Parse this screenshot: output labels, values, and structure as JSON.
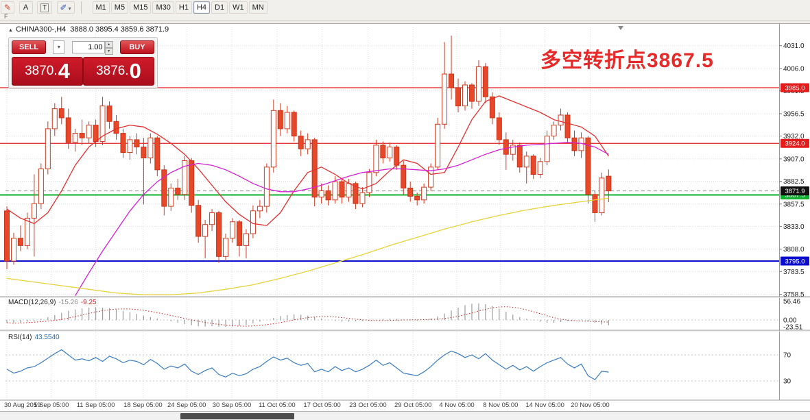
{
  "icons": {
    "collapse": "▲",
    "chevron_down": "▾",
    "chevron_up": "▴",
    "pencil": "✎",
    "brush": "✐"
  },
  "toolbar": {
    "a_label": "A",
    "t_label": "T",
    "dock_letter": "F",
    "timeframes": [
      {
        "label": "M1"
      },
      {
        "label": "M5"
      },
      {
        "label": "M15"
      },
      {
        "label": "M30"
      },
      {
        "label": "H1"
      },
      {
        "label": "H4",
        "active": true
      },
      {
        "label": "D1"
      },
      {
        "label": "W1"
      },
      {
        "label": "MN"
      }
    ]
  },
  "chart": {
    "symbol_line": "CHINA300-,H4  3888.0 3895.4 3859.6 3871.9",
    "annotation": "多空转折点3867.5"
  },
  "trade": {
    "sell_label": "SELL",
    "buy_label": "BUY",
    "volume": "1.00",
    "bid_main": "3870.",
    "bid_pip": "4",
    "ask_main": "3876.",
    "ask_pip": "0"
  },
  "chart_data": {
    "type": "candlestick",
    "symbol": "CHINA300-",
    "period": "H4",
    "ohlc_current": {
      "open": 3888.0,
      "high": 3895.4,
      "low": 3859.6,
      "close": 3871.9
    },
    "price_axis": [
      4031.0,
      4006.0,
      3981.5,
      3956.5,
      3932.0,
      3907.0,
      3882.5,
      3857.5,
      3833.0,
      3808.0,
      3783.5,
      3758.5
    ],
    "hlines": [
      {
        "price": 3985.0,
        "label": "3985.0",
        "color": "#e31c1c",
        "width": 1.3
      },
      {
        "price": 3924.0,
        "label": "3924.0",
        "color": "#e31c1c",
        "width": 1.3
      },
      {
        "price": 3867.5,
        "label": "3867.5",
        "color": "#0faf2e",
        "width": 2
      },
      {
        "price": 3795.0,
        "label": "3795.0",
        "color": "#0d0dd0",
        "width": 2
      }
    ],
    "current_price": {
      "value": 3871.9,
      "label": "3871.9",
      "badge_color": "#111111"
    },
    "candles": [
      [
        3850,
        3855,
        3786,
        3795
      ],
      [
        3795,
        3826,
        3791,
        3820
      ],
      [
        3820,
        3834,
        3806,
        3812
      ],
      [
        3812,
        3848,
        3808,
        3842
      ],
      [
        3842,
        3890,
        3800,
        3858
      ],
      [
        3858,
        3902,
        3852,
        3896
      ],
      [
        3896,
        3948,
        3890,
        3940
      ],
      [
        3940,
        3968,
        3932,
        3962
      ],
      [
        3962,
        3975,
        3945,
        3952
      ],
      [
        3952,
        3962,
        3918,
        3925
      ],
      [
        3925,
        3940,
        3915,
        3935
      ],
      [
        3935,
        3950,
        3922,
        3930
      ],
      [
        3930,
        3948,
        3924,
        3944
      ],
      [
        3944,
        3950,
        3920,
        3926
      ],
      [
        3926,
        3975,
        3922,
        3965
      ],
      [
        3965,
        3970,
        3940,
        3948
      ],
      [
        3948,
        3955,
        3928,
        3935
      ],
      [
        3935,
        3940,
        3908,
        3914
      ],
      [
        3914,
        3932,
        3906,
        3928
      ],
      [
        3928,
        3935,
        3912,
        3920
      ],
      [
        3920,
        3930,
        3857,
        3908
      ],
      [
        3908,
        3935,
        3902,
        3930
      ],
      [
        3930,
        3932,
        3888,
        3895
      ],
      [
        3895,
        3900,
        3845,
        3855
      ],
      [
        3855,
        3880,
        3850,
        3875
      ],
      [
        3875,
        3885,
        3862,
        3868
      ],
      [
        3868,
        3910,
        3862,
        3905
      ],
      [
        3905,
        3908,
        3848,
        3856
      ],
      [
        3856,
        3862,
        3815,
        3822
      ],
      [
        3822,
        3840,
        3798,
        3835
      ],
      [
        3835,
        3852,
        3828,
        3848
      ],
      [
        3848,
        3850,
        3793,
        3800
      ],
      [
        3800,
        3825,
        3795,
        3820
      ],
      [
        3820,
        3842,
        3815,
        3838
      ],
      [
        3838,
        3840,
        3800,
        3812
      ],
      [
        3812,
        3830,
        3798,
        3825
      ],
      [
        3825,
        3856,
        3820,
        3850
      ],
      [
        3850,
        3862,
        3842,
        3855
      ],
      [
        3855,
        3902,
        3848,
        3898
      ],
      [
        3898,
        3972,
        3892,
        3960
      ],
      [
        3960,
        3968,
        3932,
        3940
      ],
      [
        3940,
        3965,
        3935,
        3958
      ],
      [
        3958,
        3960,
        3926,
        3932
      ],
      [
        3932,
        3938,
        3910,
        3918
      ],
      [
        3918,
        3935,
        3912,
        3928
      ],
      [
        3928,
        3930,
        3855,
        3865
      ],
      [
        3865,
        3880,
        3858,
        3872
      ],
      [
        3872,
        3878,
        3856,
        3862
      ],
      [
        3862,
        3888,
        3858,
        3882
      ],
      [
        3882,
        3886,
        3858,
        3865
      ],
      [
        3865,
        3885,
        3860,
        3880
      ],
      [
        3880,
        3882,
        3852,
        3858
      ],
      [
        3858,
        3876,
        3854,
        3870
      ],
      [
        3870,
        3896,
        3865,
        3892
      ],
      [
        3892,
        3928,
        3888,
        3922
      ],
      [
        3922,
        3926,
        3902,
        3908
      ],
      [
        3908,
        3925,
        3904,
        3920
      ],
      [
        3920,
        3922,
        3895,
        3900
      ],
      [
        3900,
        3905,
        3868,
        3875
      ],
      [
        3875,
        3882,
        3860,
        3866
      ],
      [
        3866,
        3870,
        3856,
        3862
      ],
      [
        3862,
        3880,
        3858,
        3876
      ],
      [
        3876,
        3902,
        3872,
        3898
      ],
      [
        3898,
        3952,
        3895,
        3945
      ],
      [
        3945,
        4035,
        3940,
        4000
      ],
      [
        4000,
        4042,
        3972,
        3985
      ],
      [
        3985,
        3995,
        3958,
        3965
      ],
      [
        3965,
        3992,
        3960,
        3988
      ],
      [
        3988,
        3990,
        3962,
        3970
      ],
      [
        3970,
        4015,
        3965,
        4008
      ],
      [
        4008,
        4012,
        3968,
        3975
      ],
      [
        3975,
        3980,
        3945,
        3952
      ],
      [
        3952,
        3958,
        3922,
        3928
      ],
      [
        3928,
        3936,
        3895,
        3912
      ],
      [
        3912,
        3928,
        3905,
        3922
      ],
      [
        3922,
        3925,
        3892,
        3898
      ],
      [
        3898,
        3915,
        3880,
        3910
      ],
      [
        3910,
        3912,
        3885,
        3890
      ],
      [
        3890,
        3908,
        3886,
        3904
      ],
      [
        3904,
        3938,
        3900,
        3932
      ],
      [
        3932,
        3948,
        3928,
        3944
      ],
      [
        3944,
        3962,
        3938,
        3955
      ],
      [
        3955,
        3958,
        3925,
        3930
      ],
      [
        3930,
        3938,
        3910,
        3916
      ],
      [
        3916,
        3936,
        3908,
        3930
      ],
      [
        3930,
        3932,
        3858,
        3868
      ],
      [
        3868,
        3872,
        3838,
        3848
      ],
      [
        3848,
        3892,
        3845,
        3886
      ],
      [
        3888,
        3895.4,
        3859.6,
        3871.9
      ]
    ],
    "ma_lines": [
      {
        "name": "fast-ma-line",
        "color": "#e42f2f",
        "points": [
          [
            0,
            3852
          ],
          [
            2,
            3842
          ],
          [
            4,
            3836
          ],
          [
            6,
            3848
          ],
          [
            8,
            3872
          ],
          [
            10,
            3900
          ],
          [
            12,
            3920
          ],
          [
            14,
            3932
          ],
          [
            16,
            3940
          ],
          [
            18,
            3944
          ],
          [
            20,
            3942
          ],
          [
            22,
            3934
          ],
          [
            24,
            3924
          ],
          [
            26,
            3912
          ],
          [
            28,
            3896
          ],
          [
            30,
            3878
          ],
          [
            32,
            3860
          ],
          [
            34,
            3846
          ],
          [
            36,
            3836
          ],
          [
            38,
            3834
          ],
          [
            40,
            3848
          ],
          [
            42,
            3872
          ],
          [
            44,
            3892
          ],
          [
            46,
            3898
          ],
          [
            48,
            3890
          ],
          [
            50,
            3880
          ],
          [
            52,
            3874
          ],
          [
            54,
            3880
          ],
          [
            56,
            3894
          ],
          [
            58,
            3906
          ],
          [
            60,
            3902
          ],
          [
            62,
            3890
          ],
          [
            64,
            3892
          ],
          [
            66,
            3920
          ],
          [
            68,
            3950
          ],
          [
            70,
            3970
          ],
          [
            72,
            3976
          ],
          [
            74,
            3970
          ],
          [
            76,
            3964
          ],
          [
            78,
            3958
          ],
          [
            80,
            3950
          ],
          [
            82,
            3946
          ],
          [
            84,
            3942
          ],
          [
            86,
            3932
          ],
          [
            88,
            3910
          ]
        ]
      },
      {
        "name": "mid-ma-line",
        "color": "#d41fd4",
        "points": [
          [
            10,
            3757
          ],
          [
            12,
            3782
          ],
          [
            14,
            3806
          ],
          [
            16,
            3828
          ],
          [
            18,
            3850
          ],
          [
            20,
            3868
          ],
          [
            22,
            3882
          ],
          [
            24,
            3892
          ],
          [
            26,
            3899
          ],
          [
            28,
            3902
          ],
          [
            30,
            3900
          ],
          [
            32,
            3895
          ],
          [
            34,
            3888
          ],
          [
            36,
            3880
          ],
          [
            38,
            3874
          ],
          [
            40,
            3871
          ],
          [
            42,
            3871
          ],
          [
            44,
            3874
          ],
          [
            46,
            3878
          ],
          [
            48,
            3883
          ],
          [
            50,
            3888
          ],
          [
            52,
            3892
          ],
          [
            54,
            3894
          ],
          [
            56,
            3896
          ],
          [
            58,
            3896
          ],
          [
            60,
            3895
          ],
          [
            62,
            3894
          ],
          [
            64,
            3896
          ],
          [
            66,
            3900
          ],
          [
            68,
            3906
          ],
          [
            70,
            3912
          ],
          [
            72,
            3917
          ],
          [
            74,
            3920
          ],
          [
            76,
            3922
          ],
          [
            78,
            3923
          ],
          [
            80,
            3924
          ],
          [
            82,
            3925
          ],
          [
            84,
            3924
          ],
          [
            86,
            3920
          ],
          [
            88,
            3912
          ]
        ]
      },
      {
        "name": "slow-ma-line",
        "color": "#e6d23c",
        "points": [
          [
            0,
            3776
          ],
          [
            4,
            3772
          ],
          [
            8,
            3768
          ],
          [
            12,
            3764
          ],
          [
            16,
            3760
          ],
          [
            20,
            3758
          ],
          [
            24,
            3758
          ],
          [
            28,
            3760
          ],
          [
            32,
            3764
          ],
          [
            36,
            3769
          ],
          [
            40,
            3776
          ],
          [
            44,
            3784
          ],
          [
            48,
            3793
          ],
          [
            52,
            3802
          ],
          [
            56,
            3812
          ],
          [
            60,
            3821
          ],
          [
            64,
            3830
          ],
          [
            68,
            3838
          ],
          [
            72,
            3845
          ],
          [
            76,
            3851
          ],
          [
            80,
            3856
          ],
          [
            84,
            3860
          ],
          [
            88,
            3864
          ]
        ]
      }
    ],
    "date_ticks": [
      {
        "i": 0,
        "label": "30 Aug 2019"
      },
      {
        "i": 6.5,
        "label": "5 Sep 05:00"
      },
      {
        "i": 13,
        "label": "11 Sep 05:00"
      },
      {
        "i": 19.9,
        "label": "18 Sep 05:00"
      },
      {
        "i": 26.3,
        "label": "24 Sep 05:00"
      },
      {
        "i": 32.9,
        "label": "30 Sep 05:00"
      },
      {
        "i": 39.5,
        "label": "11 Oct 05:00"
      },
      {
        "i": 46.1,
        "label": "17 Oct 05:00"
      },
      {
        "i": 52.8,
        "label": "23 Oct 05:00"
      },
      {
        "i": 59.4,
        "label": "29 Oct 05:00"
      },
      {
        "i": 65.8,
        "label": "4 Nov 05:00"
      },
      {
        "i": 72.2,
        "label": "8 Nov 05:00"
      },
      {
        "i": 78.7,
        "label": "14 Nov 05:00"
      },
      {
        "i": 85.3,
        "label": "20 Nov 05:00"
      }
    ],
    "macd": {
      "name": "MACD(12,26,9)",
      "value_main": "-15.26",
      "value_signal": "-9.25",
      "axis_max": 56.46,
      "axis_min": -23.51,
      "axis_labels": [
        "56.46",
        "0.00",
        "-23.51"
      ],
      "hist": [
        -8,
        -10,
        -8,
        -5,
        -2,
        3,
        8,
        14,
        20,
        26,
        30,
        33,
        35,
        36,
        35,
        33,
        30,
        26,
        22,
        17,
        12,
        8,
        4,
        0,
        -4,
        -8,
        -12,
        -15,
        -18,
        -19,
        -18,
        -19,
        -20,
        -19,
        -17,
        -14,
        -10,
        -5,
        0,
        6,
        11,
        14,
        16,
        15,
        12,
        8,
        4,
        0,
        -3,
        -5,
        -5,
        -4,
        -3,
        -1,
        1,
        3,
        4,
        3,
        1,
        -1,
        -2,
        0,
        4,
        10,
        18,
        27,
        35,
        42,
        46,
        47,
        45,
        40,
        32,
        23,
        15,
        8,
        3,
        -1,
        -5,
        -8,
        -8,
        -6,
        -3,
        0,
        1,
        -3,
        -8,
        -13,
        -15.26
      ]
    },
    "rsi": {
      "name": "RSI(14)",
      "value": "43.5540",
      "levels": [
        70,
        30
      ],
      "series": [
        48,
        42,
        45,
        50,
        52,
        58,
        65,
        72,
        78,
        70,
        62,
        64,
        61,
        66,
        60,
        68,
        64,
        58,
        62,
        60,
        55,
        63,
        57,
        48,
        53,
        50,
        56,
        45,
        40,
        46,
        50,
        40,
        36,
        42,
        38,
        41,
        48,
        52,
        60,
        67,
        62,
        65,
        58,
        54,
        57,
        44,
        48,
        44,
        52,
        46,
        50,
        44,
        48,
        54,
        62,
        54,
        58,
        50,
        42,
        40,
        38,
        44,
        52,
        62,
        70,
        76,
        72,
        66,
        70,
        64,
        72,
        62,
        55,
        48,
        54,
        47,
        52,
        45,
        52,
        58,
        62,
        66,
        56,
        50,
        56,
        38,
        32,
        45,
        43.55
      ]
    }
  }
}
